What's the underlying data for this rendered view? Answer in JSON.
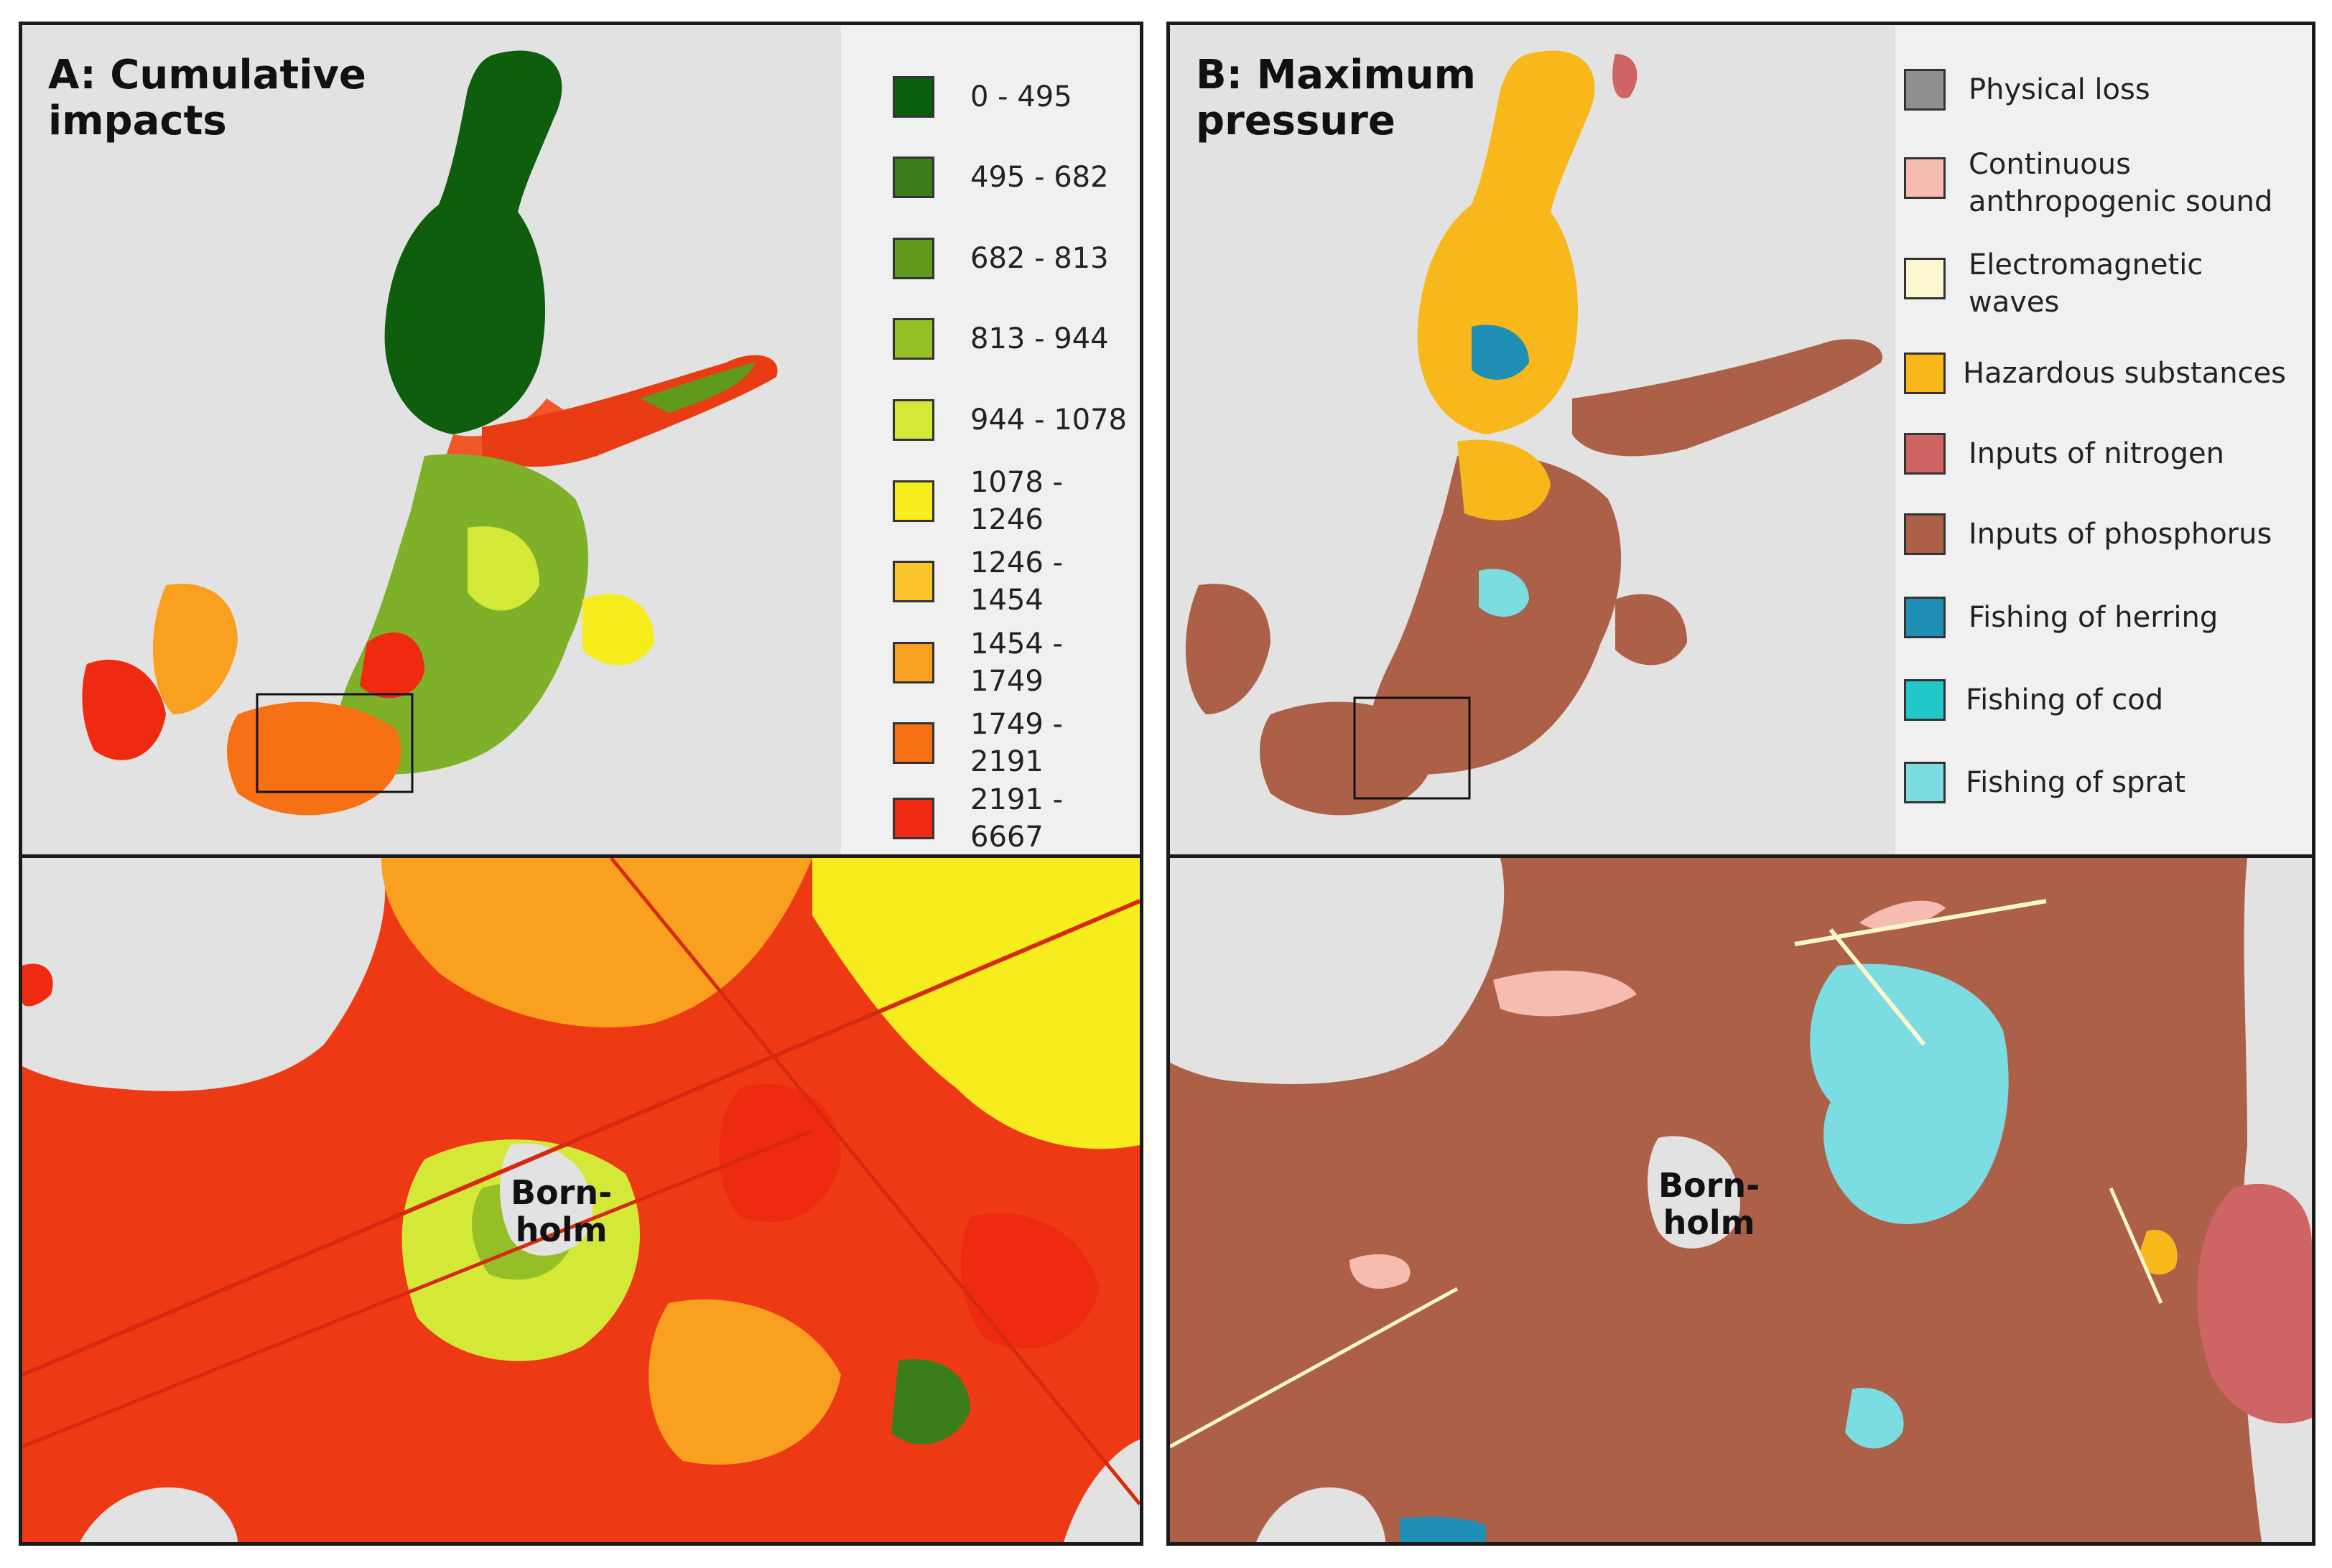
{
  "panels": {
    "a": {
      "title": "A: Cumulative\nimpacts",
      "legend": [
        {
          "label": "0 - 495",
          "color": "#0b5e0b"
        },
        {
          "label": "495 - 682",
          "color": "#3a7d1a"
        },
        {
          "label": "682 - 813",
          "color": "#5f9a1c"
        },
        {
          "label": "813 - 944",
          "color": "#95bf26"
        },
        {
          "label": "944 - 1078",
          "color": "#d4e838"
        },
        {
          "label": "1078 - 1246",
          "color": "#f7ec1e"
        },
        {
          "label": "1246 - 1454",
          "color": "#fbc32a"
        },
        {
          "label": "1454 - 1749",
          "color": "#f9a020"
        },
        {
          "label": "1749 - 2191",
          "color": "#f77014"
        },
        {
          "label": "2191 - 6667",
          "color": "#ee2a10"
        }
      ],
      "inset_label": "Born-\nholm"
    },
    "b": {
      "title": "B: Maximum\npressure",
      "legend": [
        {
          "label": "Physical loss",
          "color": "#8f8f8f"
        },
        {
          "label": "Continuous anthropogenic sound",
          "color": "#f6bcb2"
        },
        {
          "label": "Electromagnetic waves",
          "color": "#fdf7cf"
        },
        {
          "label": "Hazardous substances",
          "color": "#f8b81c"
        },
        {
          "label": "Inputs of nitrogen",
          "color": "#cf6465"
        },
        {
          "label": "Inputs of phosphorus",
          "color": "#ad6048"
        },
        {
          "label": "Fishing of herring",
          "color": "#1f8fb6"
        },
        {
          "label": "Fishing of cod",
          "color": "#22c7c9"
        },
        {
          "label": "Fishing of sprat",
          "color": "#7bdce2"
        }
      ],
      "inset_label": "Born-\nholm"
    }
  },
  "map_colors": {
    "land": "#e2e2e2",
    "frame": "#1a1a1a"
  }
}
